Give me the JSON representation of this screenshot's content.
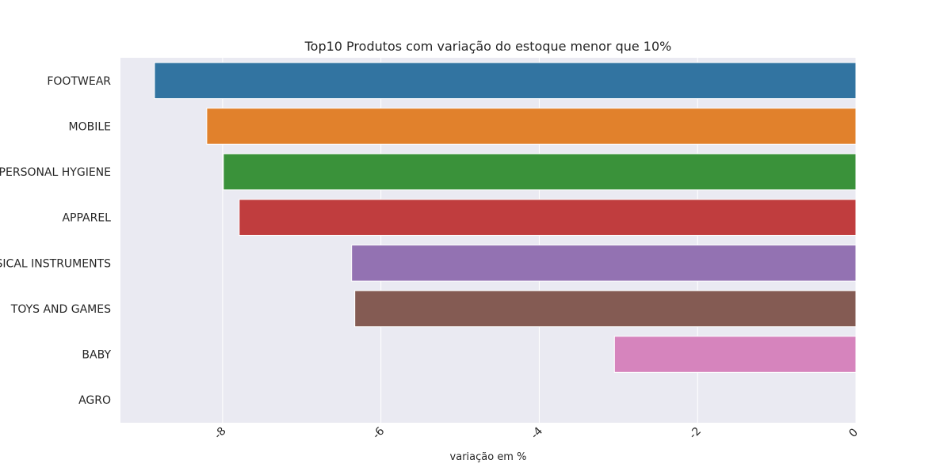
{
  "chart_data": {
    "type": "bar",
    "orientation": "horizontal",
    "title": "Top10 Produtos com variação do estoque menor que 10%",
    "xlabel": "variação em %",
    "ylabel": "",
    "categories": [
      "FOOTWEAR",
      "MOBILE",
      "PERSONAL HYGIENE",
      "APPAREL",
      "MUSICAL INSTRUMENTS",
      "TOYS AND GAMES",
      "BABY",
      "AGRO"
    ],
    "values": [
      -8.86,
      -8.2,
      -7.99,
      -7.79,
      -6.37,
      -6.33,
      -3.05,
      0
    ],
    "colors": [
      "#3274a1",
      "#e1812c",
      "#3a923a",
      "#c03d3e",
      "#9372b2",
      "#845b53",
      "#d684bd",
      "#7f7f7f"
    ],
    "xticks": [
      "-8",
      "-6",
      "-4",
      "-2",
      "0"
    ],
    "xtick_values": [
      -8,
      -6,
      -4,
      -2,
      0
    ],
    "xlim": [
      -9.29,
      0
    ],
    "grid": true,
    "background": "#eaeaf2"
  }
}
